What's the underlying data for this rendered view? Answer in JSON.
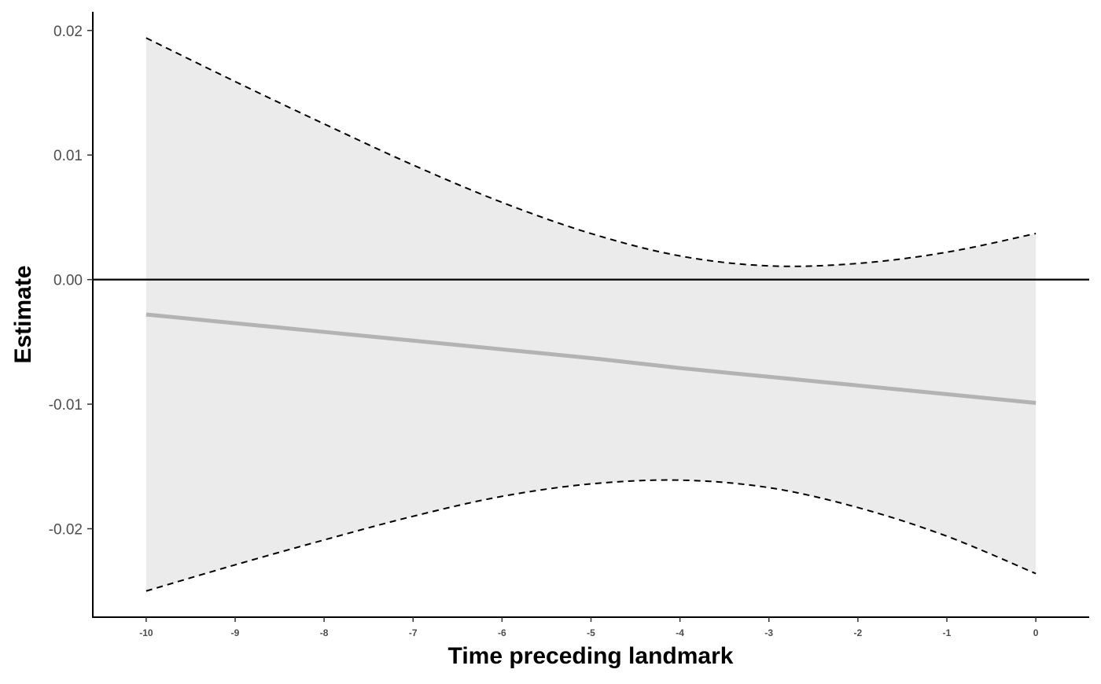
{
  "chart_data": {
    "type": "line",
    "title": "",
    "xlabel": "Time preceding landmark",
    "ylabel": "Estimate",
    "xlim": [
      -10.6,
      0.6
    ],
    "ylim": [
      -0.0271,
      0.0215
    ],
    "x_ticks": [
      -10,
      -9,
      -8,
      -7,
      -6,
      -5,
      -4,
      -3,
      -2,
      -1,
      0
    ],
    "x_tick_labels": [
      "-10",
      "-9",
      "-8",
      "-7",
      "-6",
      "-5",
      "-4",
      "-3",
      "-2",
      "-1",
      "0"
    ],
    "y_ticks": [
      0.02,
      0.01,
      0.0,
      -0.01,
      -0.02
    ],
    "y_tick_labels": [
      "0.02",
      "0.01",
      "0.00",
      "-0.01",
      "-0.02"
    ],
    "reference_line_y": 0.0,
    "grid": false,
    "x": [
      -10,
      -9,
      -8,
      -7,
      -6,
      -5,
      -4,
      -3,
      -2,
      -1,
      0
    ],
    "series": [
      {
        "role": "estimate",
        "style": "solid",
        "color": "#b3b3b3",
        "values": [
          -0.0028,
          -0.0035,
          -0.0042,
          -0.0049,
          -0.0056,
          -0.0063,
          -0.0071,
          -0.0078,
          -0.0085,
          -0.0092,
          -0.0099
        ]
      },
      {
        "role": "upper-bound",
        "style": "dashed",
        "color": "#000000",
        "values": [
          0.0194,
          0.0159,
          0.0125,
          0.0092,
          0.0062,
          0.0037,
          0.0019,
          0.0011,
          0.0013,
          0.0022,
          0.0037
        ]
      },
      {
        "role": "lower-bound",
        "style": "dashed",
        "color": "#000000",
        "values": [
          -0.025,
          -0.0229,
          -0.0209,
          -0.019,
          -0.0174,
          -0.0164,
          -0.0161,
          -0.0167,
          -0.0183,
          -0.0206,
          -0.0236
        ]
      }
    ],
    "band_fill_color": "#ebebeb"
  }
}
